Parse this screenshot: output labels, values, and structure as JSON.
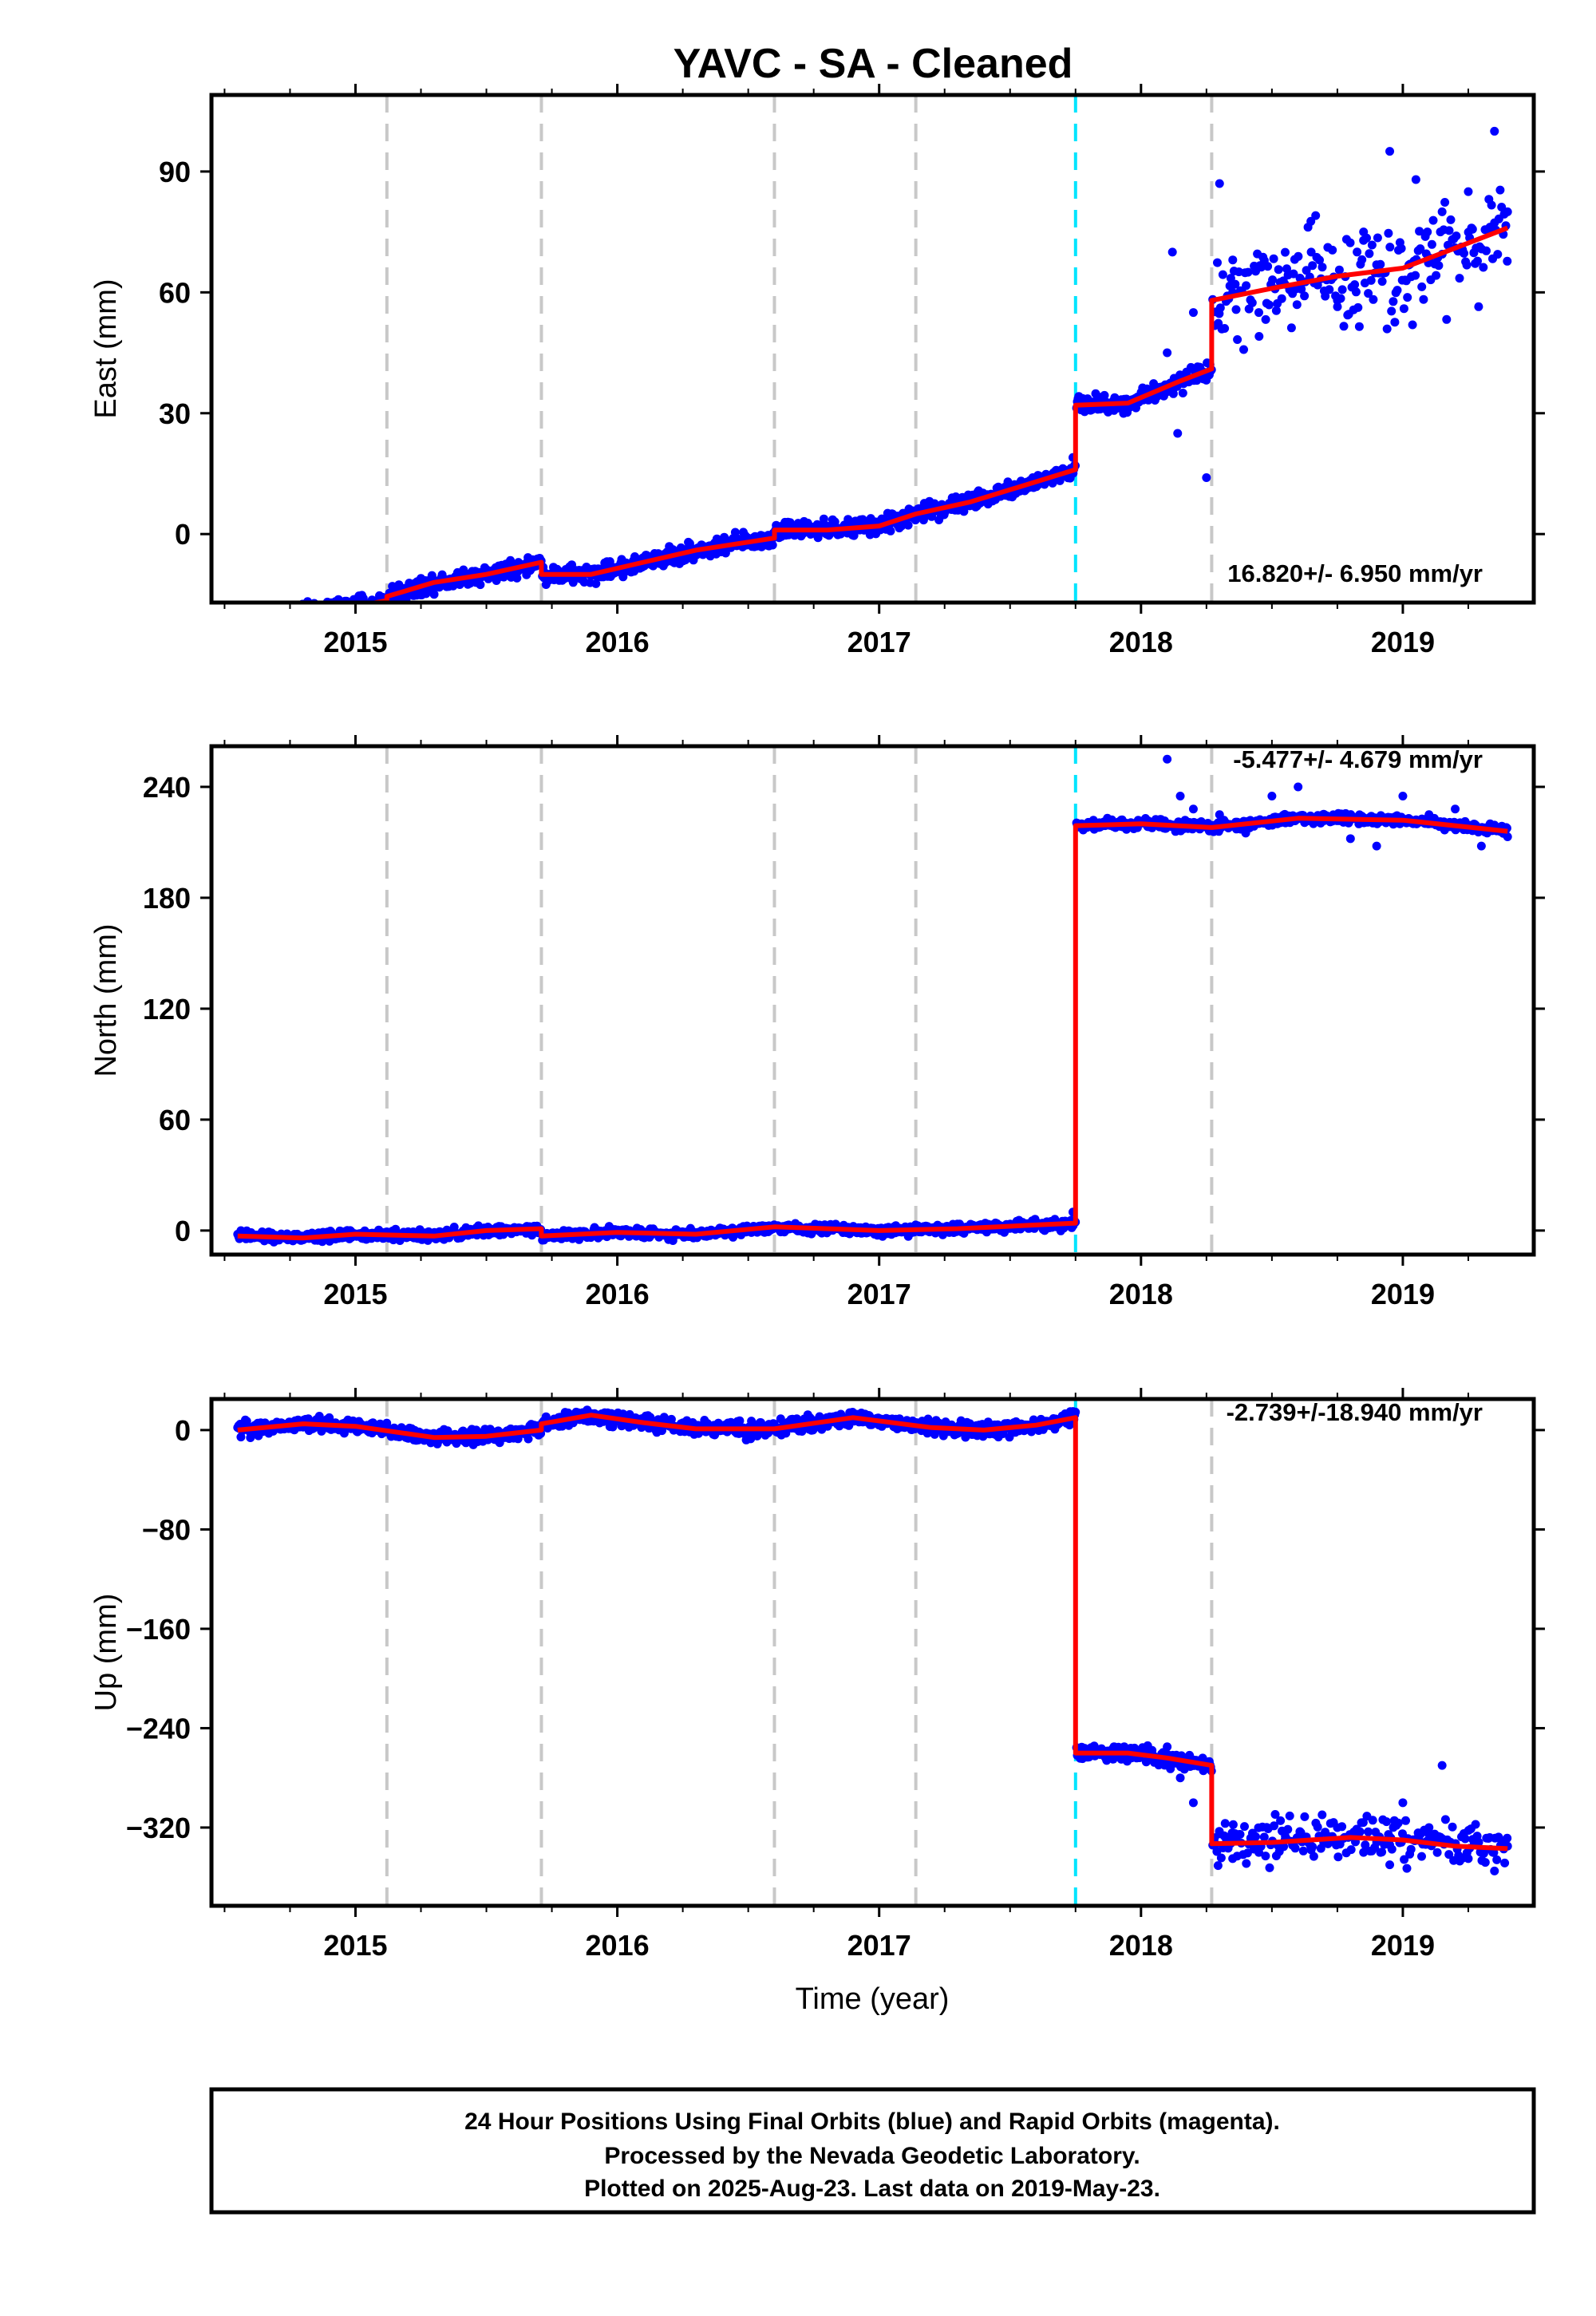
{
  "title": "YAVC  - SA - Cleaned",
  "xlabel": "Time (year)",
  "footer": {
    "line1": "24 Hour Positions Using Final Orbits (blue) and Rapid Orbits (magenta).",
    "line2": "Processed by the Nevada Geodetic Laboratory.",
    "line3": "Plotted on 2025-Aug-23. Last data on 2019-May-23."
  },
  "colors": {
    "points": "#0000ff",
    "model": "#ff0000",
    "equipment_change_lines": "#c8c8c8",
    "earthquake_line": "#00e5ff",
    "frame": "#000000"
  },
  "chart_data": [
    {
      "type": "scatter",
      "name": "east",
      "ylabel": "East (mm)",
      "xlim": [
        2014.45,
        2019.5
      ],
      "ylim": [
        -17,
        109
      ],
      "x_ticks": [
        2015,
        2016,
        2017,
        2018,
        2019
      ],
      "x_tick_labels": [
        "2015",
        "2016",
        "2017",
        "2018",
        "2019"
      ],
      "y_ticks": [
        0,
        30,
        60,
        90
      ],
      "y_tick_labels": [
        "0",
        "30",
        "60",
        "90"
      ],
      "rate_label": "16.820+/- 6.950 mm/yr",
      "grid": false,
      "gray_dashed_lines": [
        2015.12,
        2015.71,
        2016.6,
        2017.14,
        2018.27
      ],
      "cyan_dashed_line": 2017.75,
      "model_segments": [
        [
          [
            2014.55,
            -22
          ],
          [
            2014.8,
            -19
          ],
          [
            2015.0,
            -18
          ],
          [
            2015.12,
            -16.5
          ]
        ],
        [
          [
            2015.12,
            -15.5
          ],
          [
            2015.3,
            -12
          ],
          [
            2015.5,
            -10
          ],
          [
            2015.71,
            -7
          ]
        ],
        [
          [
            2015.71,
            -10
          ],
          [
            2015.9,
            -10
          ],
          [
            2016.1,
            -7
          ],
          [
            2016.3,
            -4
          ],
          [
            2016.6,
            -1
          ]
        ],
        [
          [
            2016.6,
            1
          ],
          [
            2016.8,
            1
          ],
          [
            2017.0,
            2
          ],
          [
            2017.14,
            5
          ],
          [
            2017.35,
            8
          ],
          [
            2017.55,
            12
          ],
          [
            2017.75,
            16
          ]
        ],
        [
          [
            2017.75,
            32
          ],
          [
            2017.95,
            32.5
          ],
          [
            2018.15,
            38
          ],
          [
            2018.27,
            41
          ]
        ],
        [
          [
            2018.27,
            58
          ],
          [
            2018.5,
            61
          ],
          [
            2018.75,
            64
          ],
          [
            2019.0,
            66
          ],
          [
            2019.2,
            71
          ],
          [
            2019.4,
            76
          ]
        ]
      ],
      "sample_points": [
        [
          2014.55,
          -19
        ],
        [
          2014.6,
          -21
        ],
        [
          2014.7,
          -20
        ],
        [
          2014.8,
          -18
        ],
        [
          2014.9,
          -20
        ],
        [
          2015.0,
          -17
        ],
        [
          2015.1,
          -16
        ],
        [
          2015.2,
          -14
        ],
        [
          2015.3,
          -13
        ],
        [
          2015.4,
          -11
        ],
        [
          2015.5,
          -10
        ],
        [
          2015.6,
          -8
        ],
        [
          2015.7,
          -7
        ],
        [
          2015.8,
          -11
        ],
        [
          2015.9,
          -10
        ],
        [
          2016.0,
          -9
        ],
        [
          2016.1,
          -7
        ],
        [
          2016.2,
          -5
        ],
        [
          2016.3,
          -4
        ],
        [
          2016.4,
          -2
        ],
        [
          2016.5,
          -1
        ],
        [
          2016.6,
          0
        ],
        [
          2016.7,
          1
        ],
        [
          2016.8,
          0
        ],
        [
          2016.9,
          1
        ],
        [
          2017.0,
          3
        ],
        [
          2017.1,
          4
        ],
        [
          2017.2,
          6
        ],
        [
          2017.3,
          8
        ],
        [
          2017.4,
          9
        ],
        [
          2017.5,
          11
        ],
        [
          2017.6,
          13
        ],
        [
          2017.7,
          15
        ],
        [
          2017.74,
          19
        ],
        [
          2018.1,
          45
        ],
        [
          2018.12,
          70
        ],
        [
          2018.14,
          25
        ],
        [
          2018.16,
          35
        ],
        [
          2018.2,
          55
        ],
        [
          2018.25,
          14
        ],
        [
          2018.3,
          87
        ],
        [
          2018.35,
          60
        ],
        [
          2018.45,
          55
        ],
        [
          2018.55,
          62
        ],
        [
          2018.65,
          70
        ],
        [
          2018.75,
          58
        ],
        [
          2018.85,
          75
        ],
        [
          2018.95,
          95
        ],
        [
          2019.05,
          88
        ],
        [
          2019.15,
          80
        ],
        [
          2019.25,
          85
        ],
        [
          2019.35,
          100
        ],
        [
          2019.4,
          80
        ]
      ]
    },
    {
      "type": "scatter",
      "name": "north",
      "ylabel": "North (mm)",
      "xlim": [
        2014.45,
        2019.5
      ],
      "ylim": [
        -13,
        262
      ],
      "x_ticks": [
        2015,
        2016,
        2017,
        2018,
        2019
      ],
      "x_tick_labels": [
        "2015",
        "2016",
        "2017",
        "2018",
        "2019"
      ],
      "y_ticks": [
        0,
        60,
        120,
        180,
        240
      ],
      "y_tick_labels": [
        "0",
        "60",
        "120",
        "180",
        "240"
      ],
      "rate_label": "-5.477+/- 4.679 mm/yr",
      "grid": false,
      "gray_dashed_lines": [
        2015.12,
        2015.71,
        2016.6,
        2017.14,
        2018.27
      ],
      "cyan_dashed_line": 2017.75,
      "model_segments": [
        [
          [
            2014.55,
            -3
          ],
          [
            2014.8,
            -4
          ],
          [
            2015.0,
            -2
          ],
          [
            2015.3,
            -3
          ],
          [
            2015.5,
            0
          ],
          [
            2015.71,
            1
          ]
        ],
        [
          [
            2015.71,
            -3
          ],
          [
            2016.0,
            -1
          ],
          [
            2016.3,
            -2
          ],
          [
            2016.6,
            2
          ],
          [
            2017.0,
            0
          ],
          [
            2017.3,
            1
          ],
          [
            2017.6,
            3
          ],
          [
            2017.75,
            4
          ]
        ],
        [
          [
            2017.75,
            219
          ],
          [
            2018.0,
            220
          ],
          [
            2018.27,
            218
          ],
          [
            2018.6,
            223
          ],
          [
            2019.0,
            222
          ],
          [
            2019.4,
            216
          ]
        ]
      ],
      "sample_points": [
        [
          2014.55,
          -2
        ],
        [
          2014.7,
          -5
        ],
        [
          2014.9,
          -3
        ],
        [
          2015.1,
          -1
        ],
        [
          2015.3,
          -4
        ],
        [
          2015.5,
          1
        ],
        [
          2015.7,
          -1
        ],
        [
          2015.9,
          -3
        ],
        [
          2016.1,
          -2
        ],
        [
          2016.3,
          -3
        ],
        [
          2016.5,
          1
        ],
        [
          2016.7,
          0
        ],
        [
          2016.9,
          1
        ],
        [
          2017.1,
          2
        ],
        [
          2017.3,
          0
        ],
        [
          2017.5,
          2
        ],
        [
          2017.7,
          5
        ],
        [
          2017.74,
          10
        ],
        [
          2018.1,
          255
        ],
        [
          2018.15,
          235
        ],
        [
          2018.2,
          228
        ],
        [
          2018.3,
          225
        ],
        [
          2018.4,
          215
        ],
        [
          2018.5,
          235
        ],
        [
          2018.6,
          240
        ],
        [
          2018.7,
          225
        ],
        [
          2018.8,
          212
        ],
        [
          2018.9,
          208
        ],
        [
          2019.0,
          235
        ],
        [
          2019.1,
          225
        ],
        [
          2019.2,
          228
        ],
        [
          2019.3,
          208
        ],
        [
          2019.4,
          213
        ]
      ]
    },
    {
      "type": "scatter",
      "name": "up",
      "ylabel": "Up (mm)",
      "xlim": [
        2014.45,
        2019.5
      ],
      "ylim": [
        -383,
        25
      ],
      "x_ticks": [
        2015,
        2016,
        2017,
        2018,
        2019
      ],
      "x_tick_labels": [
        "2015",
        "2016",
        "2017",
        "2018",
        "2019"
      ],
      "y_ticks": [
        0,
        -80,
        -160,
        -240,
        -320
      ],
      "y_tick_labels": [
        "0",
        "−80",
        "−160",
        "−240",
        "−320"
      ],
      "rate_label": "-2.739+/-18.940 mm/yr",
      "grid": false,
      "gray_dashed_lines": [
        2015.12,
        2015.71,
        2016.6,
        2017.14,
        2018.27
      ],
      "cyan_dashed_line": 2017.75,
      "model_segments": [
        [
          [
            2014.55,
            0
          ],
          [
            2014.8,
            5
          ],
          [
            2015.0,
            3
          ],
          [
            2015.3,
            -6
          ],
          [
            2015.5,
            -5
          ],
          [
            2015.71,
            0
          ]
        ],
        [
          [
            2015.71,
            5
          ],
          [
            2015.9,
            12
          ],
          [
            2016.1,
            6
          ],
          [
            2016.3,
            1
          ],
          [
            2016.6,
            1
          ],
          [
            2016.9,
            10
          ],
          [
            2017.2,
            2
          ],
          [
            2017.4,
            0
          ],
          [
            2017.6,
            4
          ],
          [
            2017.75,
            10
          ]
        ],
        [
          [
            2017.75,
            -260
          ],
          [
            2017.95,
            -260
          ],
          [
            2018.1,
            -264
          ],
          [
            2018.27,
            -270
          ]
        ],
        [
          [
            2018.27,
            -333
          ],
          [
            2018.5,
            -332
          ],
          [
            2018.8,
            -328
          ],
          [
            2019.0,
            -330
          ],
          [
            2019.2,
            -335
          ],
          [
            2019.4,
            -337
          ]
        ]
      ],
      "sample_points": [
        [
          2014.55,
          2
        ],
        [
          2014.7,
          5
        ],
        [
          2014.9,
          10
        ],
        [
          2015.1,
          -3
        ],
        [
          2015.3,
          -8
        ],
        [
          2015.5,
          -4
        ],
        [
          2015.7,
          1
        ],
        [
          2015.85,
          14
        ],
        [
          2016.0,
          10
        ],
        [
          2016.2,
          3
        ],
        [
          2016.4,
          1
        ],
        [
          2016.6,
          2
        ],
        [
          2016.8,
          10
        ],
        [
          2017.0,
          6
        ],
        [
          2017.2,
          0
        ],
        [
          2017.4,
          -2
        ],
        [
          2017.6,
          3
        ],
        [
          2017.74,
          15
        ],
        [
          2018.1,
          -255
        ],
        [
          2018.15,
          -280
        ],
        [
          2018.2,
          -300
        ],
        [
          2018.3,
          -325
        ],
        [
          2018.35,
          -345
        ],
        [
          2018.45,
          -340
        ],
        [
          2018.55,
          -330
        ],
        [
          2018.65,
          -338
        ],
        [
          2018.75,
          -320
        ],
        [
          2018.85,
          -340
        ],
        [
          2018.95,
          -350
        ],
        [
          2019.0,
          -300
        ],
        [
          2019.1,
          -320
        ],
        [
          2019.15,
          -270
        ],
        [
          2019.25,
          -345
        ],
        [
          2019.35,
          -355
        ],
        [
          2019.4,
          -335
        ]
      ]
    }
  ]
}
